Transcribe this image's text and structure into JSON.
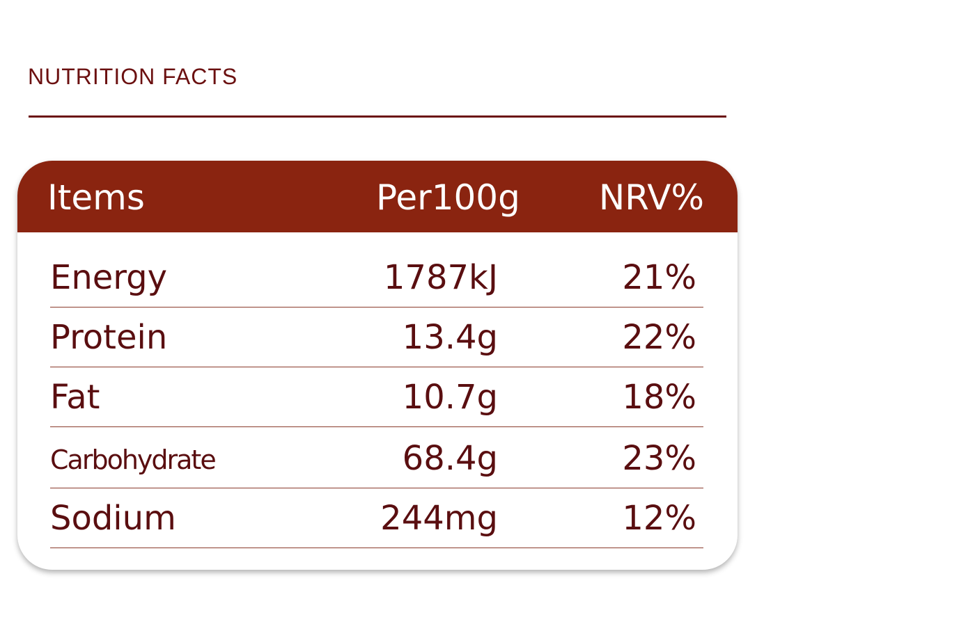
{
  "header": {
    "title": "NUTRITION FACTS"
  },
  "table": {
    "columns": [
      "Items",
      "Per100g",
      "NRV%"
    ],
    "rows": [
      [
        "Energy",
        "1787kJ",
        "21%"
      ],
      [
        "Protein",
        "13.4g",
        "22%"
      ],
      [
        "Fat",
        "10.7g",
        "18%"
      ],
      [
        "Carbohydrate",
        "68.4g",
        "23%"
      ],
      [
        "Sodium",
        "244mg",
        "12%"
      ]
    ]
  }
}
